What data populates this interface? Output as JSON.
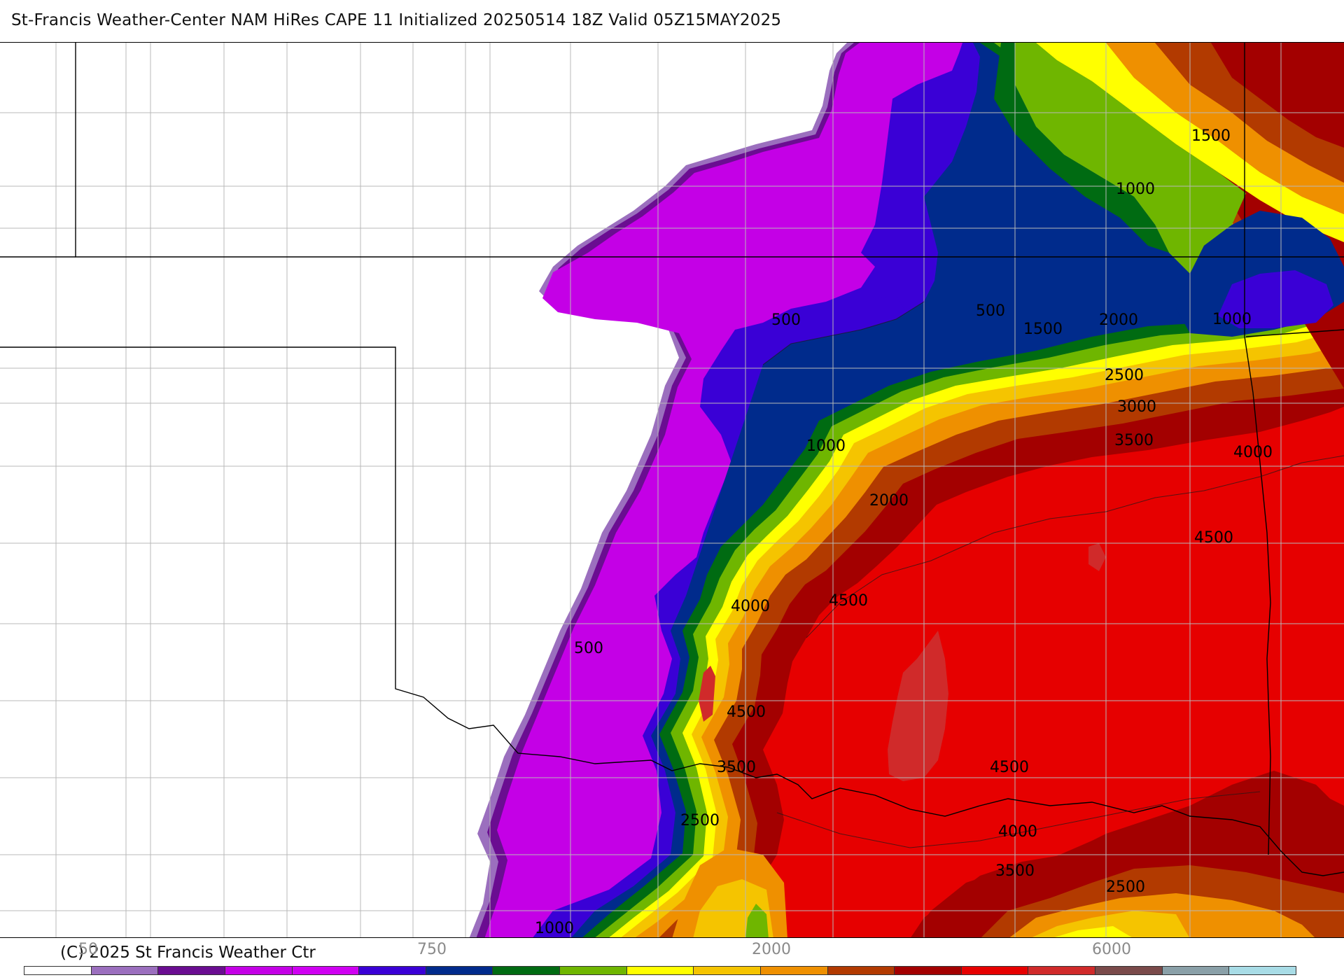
{
  "header": {
    "title": "St-Francis Weather-Center NAM HiRes CAPE  11 Initialized 20250514 18Z Valid 05Z15MAY2025"
  },
  "map": {
    "field": "CAPE",
    "contour_labels": [
      "1500",
      "1000",
      "500",
      "500",
      "1500",
      "2000",
      "1000",
      "2500",
      "3000",
      "3500",
      "4000",
      "1000",
      "2000",
      "4500",
      "4000",
      "4500",
      "500",
      "4500",
      "3500",
      "4500",
      "2500",
      "4000",
      "3500",
      "2500",
      "1000"
    ]
  },
  "footer": {
    "copyright": "(C) 2025 St Francis Weather Ctr",
    "colorbar_tick_labels": [
      "50",
      "750",
      "2000",
      "6000"
    ]
  },
  "colors": {
    "c50": "#9b6fbe",
    "c250": "#6a0d91",
    "c500": "#c400e6",
    "c750": "#cf00f2",
    "c1000a": "#3a00d6",
    "c1000b": "#002b8c",
    "c1250": "#006b12",
    "c1500": "#6fb600",
    "c1750": "#ffff00",
    "c2000": "#f5c400",
    "c2250": "#ef9000",
    "c2500": "#b23a00",
    "c3000": "#a30000",
    "c4000": "#e60000",
    "c4500": "#d02a2a",
    "c5000": "#7a4a4a",
    "c5500": "#8aa0a8",
    "c6000": "#a8dce6"
  },
  "colorbar_colors": [
    "#ffffff",
    "#9b6fbe",
    "#6a0d91",
    "#c400e6",
    "#cf00f2",
    "#3a00d6",
    "#002b8c",
    "#006b12",
    "#6fb600",
    "#ffff00",
    "#f5c400",
    "#ef9000",
    "#b23a00",
    "#a30000",
    "#e60000",
    "#d02a2a",
    "#7a4a4a",
    "#8aa0a8",
    "#a8dce6"
  ]
}
